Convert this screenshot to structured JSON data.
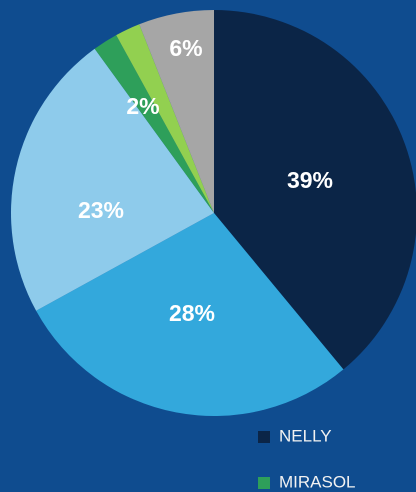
{
  "chart_data": {
    "type": "pie",
    "categories": [
      "NELLY",
      null,
      null,
      "MIRASOL",
      null,
      null
    ],
    "values": [
      39,
      28,
      23,
      2,
      2,
      6
    ],
    "value_labels": [
      "39%",
      "28%",
      "23%",
      null,
      "2%",
      "6%"
    ],
    "colors": [
      "#0b2547",
      "#33a8dc",
      "#8ecbeb",
      "#2e9f5a",
      "#92d050",
      "#a6a6a6"
    ]
  }
}
